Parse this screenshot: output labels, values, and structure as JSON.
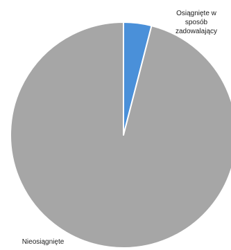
{
  "chart_data": {
    "type": "pie",
    "title": "",
    "slices": [
      {
        "label": "Osiągnięte w sposób zadowalający",
        "label_lines": [
          "Osiągnięte w",
          "sposób",
          "zadowalający"
        ],
        "value": 4,
        "color": "#4a90d9"
      },
      {
        "label": "Nieosiągnięte",
        "label_lines": [
          "Nieosiągnięte"
        ],
        "value": 96,
        "color": "#a6a6a6"
      }
    ],
    "start_angle_deg": 0,
    "direction": "clockwise",
    "legend": "none"
  }
}
